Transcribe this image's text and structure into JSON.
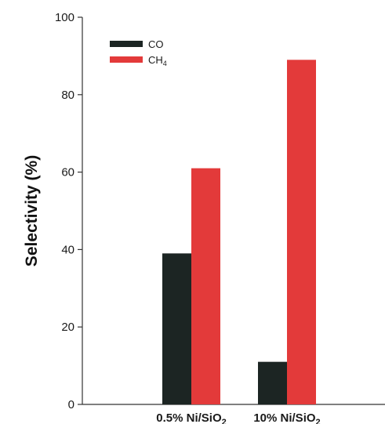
{
  "chart_data": {
    "type": "bar",
    "title": "",
    "xlabel": "",
    "ylabel": "Selectivity (%)",
    "ylim": [
      0,
      100
    ],
    "yticks": [
      0,
      20,
      40,
      60,
      80,
      100
    ],
    "grid": false,
    "legend_position": "top-left",
    "categories": [
      {
        "prefix": "0.5% Ni/SiO",
        "sub": "2"
      },
      {
        "prefix": "10% Ni/SiO",
        "sub": "2"
      }
    ],
    "series": [
      {
        "name": "CO",
        "name_sub": "",
        "color": "#1c2523",
        "values": [
          39,
          11
        ]
      },
      {
        "name": "CH",
        "name_sub": "4",
        "color": "#e33a3a",
        "values": [
          61,
          89
        ]
      }
    ]
  }
}
